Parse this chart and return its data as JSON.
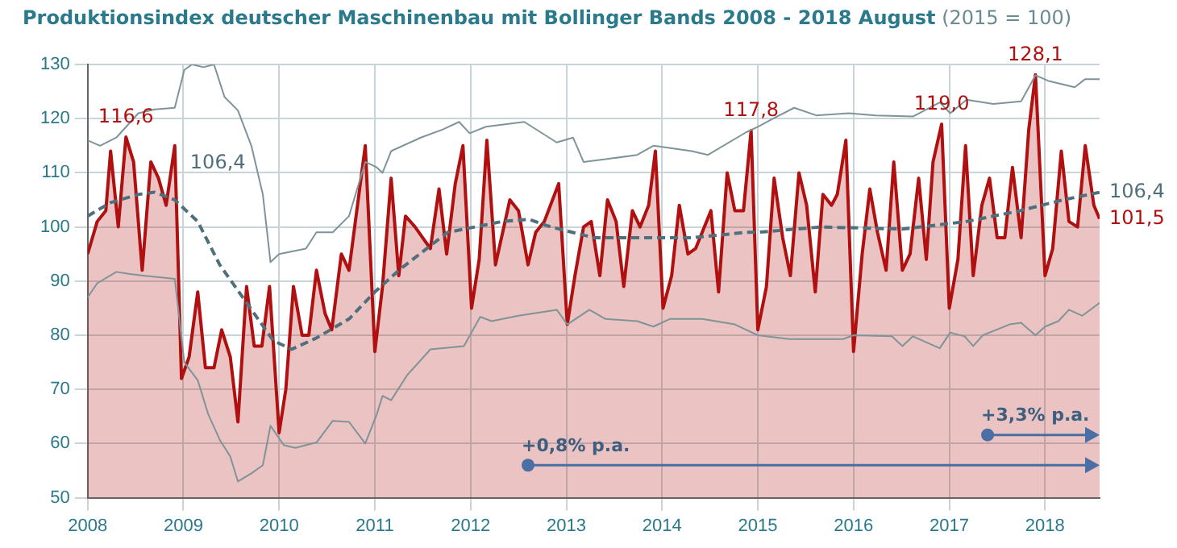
{
  "chart_data": {
    "type": "line",
    "title": "Produktionsindex deutscher Maschinenbau mit Bollinger Bands 2008 - 2018 August",
    "subtitle": "(2015 = 100)",
    "xlim": [
      2008,
      2018.57
    ],
    "xticks": [
      2008,
      2009,
      2010,
      2011,
      2012,
      2013,
      2014,
      2015,
      2016,
      2017,
      2018
    ],
    "ylim": [
      50,
      130
    ],
    "yticks": [
      50,
      60,
      70,
      80,
      90,
      100,
      110,
      120,
      130
    ],
    "grid": true,
    "legend": false,
    "marker": "none",
    "series": [
      {
        "type": "area",
        "color": "#b01010",
        "x": [
          2008.0,
          2008.1,
          2008.19,
          2008.24,
          2008.32,
          2008.4,
          2008.48,
          2008.57,
          2008.66,
          2008.74,
          2008.82,
          2008.91,
          2008.98,
          2009.06,
          2009.15,
          2009.23,
          2009.32,
          2009.4,
          2009.49,
          2009.57,
          2009.66,
          2009.74,
          2009.82,
          2009.9,
          2010.0,
          2010.07,
          2010.15,
          2010.24,
          2010.31,
          2010.39,
          2010.48,
          2010.55,
          2010.65,
          2010.73,
          2010.9,
          2011.0,
          2011.08,
          2011.17,
          2011.25,
          2011.32,
          2011.42,
          2011.58,
          2011.67,
          2011.75,
          2011.84,
          2011.92,
          2012.01,
          2012.09,
          2012.17,
          2012.26,
          2012.41,
          2012.5,
          2012.6,
          2012.68,
          2012.77,
          2012.92,
          2013.01,
          2013.09,
          2013.18,
          2013.26,
          2013.35,
          2013.43,
          2013.52,
          2013.6,
          2013.69,
          2013.77,
          2013.86,
          2013.93,
          2014.01,
          2014.1,
          2014.18,
          2014.27,
          2014.35,
          2014.51,
          2014.59,
          2014.68,
          2014.76,
          2014.85,
          2014.93,
          2015.0,
          2015.09,
          2015.17,
          2015.26,
          2015.34,
          2015.43,
          2015.51,
          2015.6,
          2015.68,
          2015.77,
          2015.83,
          2015.92,
          2016.0,
          2016.09,
          2016.17,
          2016.25,
          2016.34,
          2016.42,
          2016.51,
          2016.59,
          2016.68,
          2016.76,
          2016.83,
          2016.92,
          2017.0,
          2017.09,
          2017.17,
          2017.25,
          2017.34,
          2017.42,
          2017.5,
          2017.58,
          2017.66,
          2017.75,
          2017.83,
          2017.9,
          2018.0,
          2018.08,
          2018.17,
          2018.25,
          2018.34,
          2018.42,
          2018.51,
          2018.57
        ],
        "values": [
          95,
          101,
          103,
          114,
          100,
          116.6,
          112,
          92,
          112,
          109,
          104,
          115,
          72,
          76,
          88,
          74,
          74,
          81,
          76,
          64,
          89,
          78,
          78,
          89,
          62,
          70,
          89,
          80,
          80,
          92,
          84,
          81,
          95,
          92,
          115,
          77,
          89,
          109,
          91,
          102,
          100,
          96,
          107,
          95,
          108,
          115,
          85,
          94,
          116,
          93,
          105,
          103,
          93,
          99,
          101,
          108,
          82,
          91,
          100,
          101,
          91,
          105,
          101,
          89,
          103,
          100,
          104,
          114,
          85,
          91,
          104,
          95,
          96,
          103,
          88,
          110,
          103,
          103,
          117.8,
          81,
          89,
          109,
          98,
          91,
          110,
          104,
          88,
          106,
          104,
          106,
          116,
          77,
          95,
          107,
          99,
          92,
          112,
          92,
          95,
          109,
          94,
          112,
          119.0,
          85,
          94,
          115,
          91,
          104,
          109,
          98,
          98,
          111,
          98,
          118,
          128.1,
          91,
          96,
          114,
          101,
          100,
          115,
          104,
          101.5
        ]
      },
      {
        "type": "line",
        "color": "#7e9498",
        "x": [
          2008.0,
          2008.13,
          2008.3,
          2008.53,
          2008.7,
          2008.91,
          2009.01,
          2009.09,
          2009.21,
          2009.32,
          2009.43,
          2009.57,
          2009.71,
          2009.83,
          2009.91,
          2010.0,
          2010.28,
          2010.39,
          2010.56,
          2010.73,
          2010.9,
          2011.02,
          2011.08,
          2011.17,
          2011.48,
          2011.71,
          2011.88,
          2011.99,
          2012.16,
          2012.56,
          2012.9,
          2013.07,
          2013.18,
          2013.41,
          2013.74,
          2013.91,
          2014.31,
          2014.48,
          2014.88,
          2015.0,
          2015.16,
          2015.38,
          2015.61,
          2015.95,
          2016.23,
          2016.62,
          2016.9,
          2017.01,
          2017.18,
          2017.46,
          2017.75,
          2017.9,
          2018.03,
          2018.31,
          2018.42,
          2018.57
        ],
        "values": [
          116,
          115,
          116.5,
          121,
          121.7,
          122,
          129,
          130,
          129.5,
          130,
          124,
          121.5,
          115,
          106,
          93.5,
          95,
          96,
          99,
          99,
          102,
          112,
          111,
          110,
          114,
          116.5,
          118,
          119.4,
          117.3,
          118.5,
          119.4,
          115.6,
          116.5,
          112,
          112.5,
          113.3,
          115,
          114,
          113.3,
          117.5,
          118.5,
          120,
          122,
          120.6,
          121,
          120.6,
          120.4,
          123,
          121,
          123.5,
          122.7,
          123.2,
          128,
          127,
          125.8,
          127.3,
          127.3
        ]
      },
      {
        "type": "line",
        "color": "#7e9498",
        "x": [
          2008.0,
          2008.1,
          2008.3,
          2008.44,
          2008.58,
          2008.91,
          2009.01,
          2009.15,
          2009.26,
          2009.38,
          2009.49,
          2009.57,
          2009.71,
          2009.83,
          2009.91,
          2010.05,
          2010.17,
          2010.39,
          2010.56,
          2010.73,
          2010.9,
          2011.02,
          2011.08,
          2011.17,
          2011.34,
          2011.58,
          2011.93,
          2012.1,
          2012.22,
          2012.5,
          2012.9,
          2013.01,
          2013.24,
          2013.41,
          2013.74,
          2013.91,
          2014.08,
          2014.42,
          2014.76,
          2015.0,
          2015.33,
          2015.89,
          2016.0,
          2016.4,
          2016.51,
          2016.62,
          2016.9,
          2017.01,
          2017.16,
          2017.25,
          2017.35,
          2017.63,
          2017.75,
          2017.9,
          2018.0,
          2018.14,
          2018.25,
          2018.39,
          2018.57
        ],
        "values": [
          87,
          89.6,
          91.7,
          91.3,
          91,
          90.4,
          75,
          71.7,
          65.4,
          60.7,
          57.6,
          53,
          54.5,
          56,
          63.3,
          59.7,
          59.2,
          60.2,
          64.2,
          64,
          60,
          65.4,
          68.8,
          68,
          72.7,
          77.4,
          78,
          83.4,
          82.6,
          83.6,
          84.7,
          82,
          84.7,
          83,
          82.6,
          81.6,
          83,
          83,
          82,
          80,
          79.3,
          79.3,
          80,
          79.8,
          78,
          79.8,
          77.6,
          80.5,
          79.8,
          78,
          80,
          82,
          82.3,
          80,
          81.6,
          82.6,
          84.7,
          83.6,
          86
        ]
      },
      {
        "type": "line",
        "color": "#4f6f7c",
        "line_style": "dashed",
        "x": [
          2008.0,
          2008.24,
          2008.53,
          2008.7,
          2008.91,
          2009.15,
          2009.38,
          2009.66,
          2009.94,
          2010.13,
          2010.39,
          2010.73,
          2011.0,
          2011.25,
          2011.76,
          2012.33,
          2012.61,
          2012.84,
          2013.29,
          2013.75,
          2014.31,
          2014.88,
          2015.0,
          2015.66,
          2016.51,
          2017.18,
          2017.74,
          2018.19,
          2018.57
        ],
        "values": [
          102,
          104.5,
          106,
          106.4,
          105,
          101,
          93,
          86,
          79,
          77.4,
          79.5,
          83,
          88,
          92,
          99,
          101,
          101.4,
          100,
          98,
          98,
          98,
          99,
          99,
          100,
          99.6,
          101,
          103,
          105,
          106.4
        ]
      }
    ],
    "annotations": [
      {
        "text": "116,6",
        "x": 2008.4,
        "y": 116.6
      },
      {
        "text": "106,4",
        "x": 2008.7,
        "y": 106.4
      },
      {
        "text": "117,8",
        "x": 2014.93,
        "y": 117.8
      },
      {
        "text": "119,0",
        "x": 2016.92,
        "y": 119.0
      },
      {
        "text": "128,1",
        "x": 2017.9,
        "y": 128.1
      },
      {
        "text": "106,4",
        "x": 2018.57,
        "y": 106.4
      },
      {
        "text": "101,5",
        "x": 2018.57,
        "y": 101.5
      },
      {
        "text": "+0,8% p.a.",
        "x": 2012.6,
        "y": 56
      },
      {
        "text": "+3,3% p.a.",
        "x": 2017.4,
        "y": 61.6
      }
    ]
  }
}
